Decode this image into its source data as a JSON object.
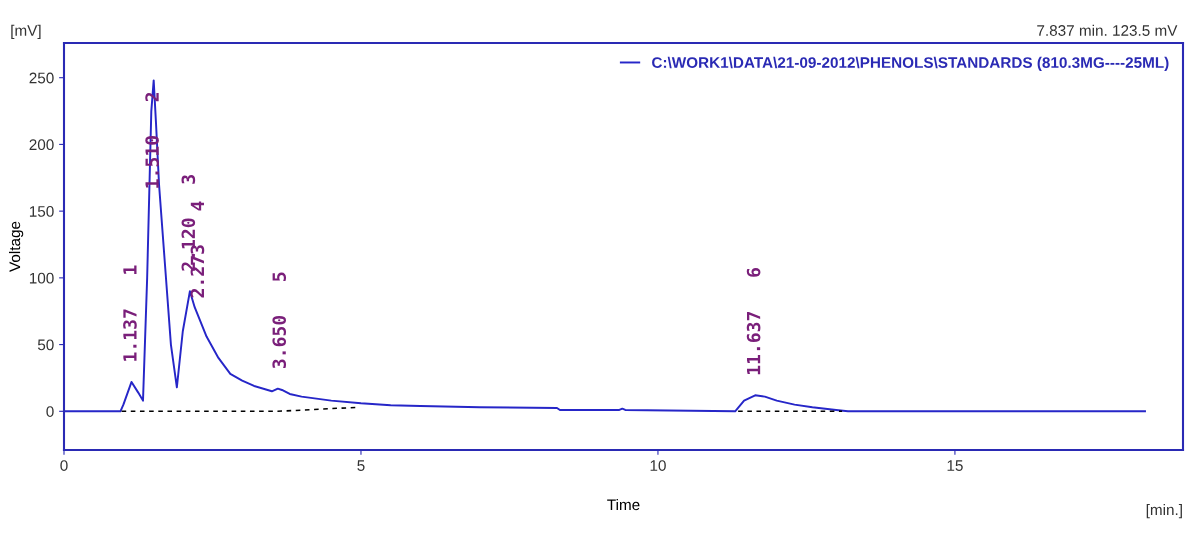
{
  "chart_data": {
    "type": "line",
    "xlabel": "Time",
    "ylabel": "Voltage",
    "xlim": [
      0,
      18.84
    ],
    "ylim": [
      -29,
      276
    ],
    "xticks": [
      0,
      5,
      10,
      15
    ],
    "yticks": [
      0,
      50,
      100,
      150,
      200,
      250
    ],
    "grid": false,
    "legend": "top right",
    "marker": "none",
    "line_style": "solid",
    "series": [
      {
        "name": "C:\\WORK1\\DATA\\21-09-2012\\PHENOLS\\STANDARDS (810.3MG----25ML)",
        "color": "#2626c8",
        "x": [
          0,
          0.95,
          1.0,
          1.137,
          1.25,
          1.33,
          1.4,
          1.47,
          1.51,
          1.55,
          1.6,
          1.7,
          1.8,
          1.9,
          2.0,
          2.12,
          2.2,
          2.273,
          2.4,
          2.6,
          2.8,
          3.0,
          3.2,
          3.5,
          3.6,
          3.67,
          3.8,
          4.0,
          4.5,
          5.0,
          5.5,
          6.0,
          7.0,
          8.3,
          8.35,
          9.35,
          9.4,
          9.45,
          11.3,
          11.45,
          11.637,
          11.8,
          12.0,
          12.3,
          12.6,
          13.0,
          13.2,
          18.2
        ],
        "values": [
          0,
          0,
          5,
          22,
          14,
          8,
          100,
          225,
          248,
          215,
          170,
          110,
          50,
          18,
          60,
          90,
          78,
          70,
          56,
          40,
          28,
          23,
          19,
          15,
          17,
          16,
          13,
          11,
          8,
          6,
          4.5,
          4,
          3,
          2.5,
          1,
          1,
          2,
          1,
          0,
          8,
          12,
          11,
          8,
          5,
          3,
          1,
          0,
          0
        ]
      },
      {
        "color": "#000000",
        "line_style": "dashed",
        "x": [
          0.97,
          3.6,
          4.95,
          5.0,
          11.35,
          13.1
        ],
        "values": [
          0,
          0,
          3,
          null,
          0,
          0
        ]
      }
    ],
    "annotations": [
      "7.837 min. 123.5 mV",
      "[mV]",
      "[min.]",
      {
        "text": "1.137   1",
        "x": 1.137,
        "y": 22
      },
      {
        "text": "1.510   2",
        "x": 1.51,
        "y": 248
      },
      {
        "text": "2.120   3",
        "x": 2.12,
        "y": 90
      },
      {
        "text": "2.273   4",
        "x": 2.273,
        "y": 70
      },
      {
        "text": "3.650   5",
        "x": 3.65,
        "y": 17
      },
      {
        "text": "11.637   6",
        "x": 11.637,
        "y": 12
      }
    ]
  }
}
